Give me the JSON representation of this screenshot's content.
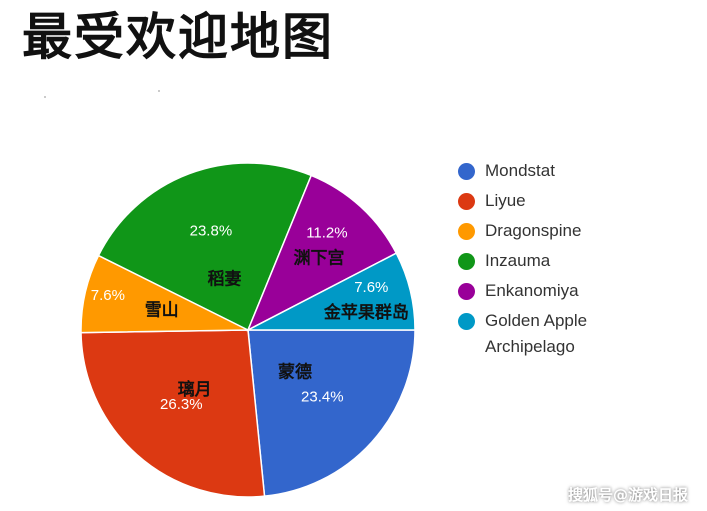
{
  "title": "最受欢迎地图",
  "watermark": "搜狐号@游戏日报",
  "chart_data": {
    "type": "pie",
    "title": "最受欢迎地图",
    "legend_position": "right",
    "slices": [
      {
        "name": "Mondstat",
        "region_label": "蒙德",
        "value": 23.4,
        "value_label": "23.4%",
        "color": "#3366cc"
      },
      {
        "name": "Liyue",
        "region_label": "璃月",
        "value": 26.3,
        "value_label": "26.3%",
        "color": "#dc3912"
      },
      {
        "name": "Dragonspine",
        "region_label": "雪山",
        "value": 7.6,
        "value_label": "7.6%",
        "color": "#ff9900"
      },
      {
        "name": "Inzauma",
        "region_label": "稻妻",
        "value": 23.8,
        "value_label": "23.8%",
        "color": "#109618"
      },
      {
        "name": "Enkanomiya",
        "region_label": "渊下宫",
        "value": 11.2,
        "value_label": "11.2%",
        "color": "#990099"
      },
      {
        "name": "Golden Apple Archipelago",
        "region_label": "金苹果群岛",
        "value": 7.6,
        "value_label": "7.6%",
        "color": "#0099c6"
      }
    ]
  },
  "legend": {
    "items": [
      {
        "label": "Mondstat",
        "color": "#3366cc"
      },
      {
        "label": "Liyue",
        "color": "#dc3912"
      },
      {
        "label": "Dragonspine",
        "color": "#ff9900"
      },
      {
        "label": "Inzauma",
        "color": "#109618"
      },
      {
        "label": "Enkanomiya",
        "color": "#990099"
      },
      {
        "label": "Golden Apple",
        "label2": "Archipelago",
        "color": "#0099c6"
      }
    ]
  }
}
